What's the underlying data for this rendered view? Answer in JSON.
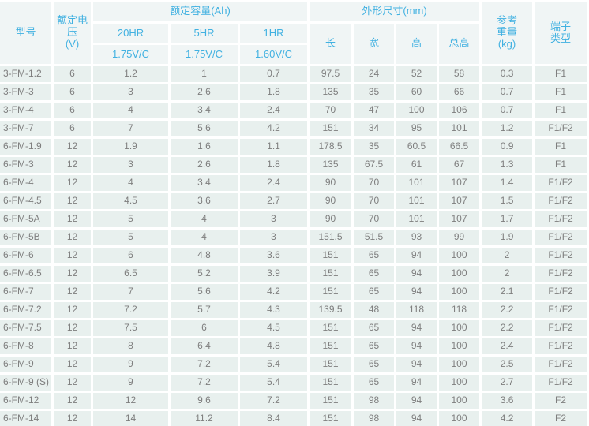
{
  "table": {
    "header": {
      "col_model": "型号",
      "col_voltage": "额定电压\n(V)",
      "group_capacity": "额定容量(Ah)",
      "capacity_cols": [
        {
          "rate": "20HR",
          "cutoff": "1.75V/C"
        },
        {
          "rate": "5HR",
          "cutoff": "1.75V/C"
        },
        {
          "rate": "1HR",
          "cutoff": "1.60V/C"
        }
      ],
      "group_dimensions": "外形尺寸(mm)",
      "dimension_cols": {
        "length": "长",
        "width": "宽",
        "height": "高",
        "total_height": "总高"
      },
      "col_weight": "参考\n重量\n(kg)",
      "col_terminal": "端子\n类型"
    },
    "rows": [
      [
        "3-FM-1.2",
        "6",
        "1.2",
        "1",
        "0.7",
        "97.5",
        "24",
        "52",
        "58",
        "0.3",
        "F1"
      ],
      [
        "3-FM-3",
        "6",
        "3",
        "2.6",
        "1.8",
        "135",
        "35",
        "60",
        "66",
        "0.7",
        "F1"
      ],
      [
        "3-FM-4",
        "6",
        "4",
        "3.4",
        "2.4",
        "70",
        "47",
        "100",
        "106",
        "0.7",
        "F1"
      ],
      [
        "3-FM-7",
        "6",
        "7",
        "5.6",
        "4.2",
        "151",
        "34",
        "95",
        "101",
        "1.2",
        "F1/F2"
      ],
      [
        "6-FM-1.9",
        "12",
        "1.9",
        "1.6",
        "1.1",
        "178.5",
        "35",
        "60.5",
        "66.5",
        "0.9",
        "F1"
      ],
      [
        "6-FM-3",
        "12",
        "3",
        "2.6",
        "1.8",
        "135",
        "67.5",
        "61",
        "67",
        "1.3",
        "F1"
      ],
      [
        "6-FM-4",
        "12",
        "4",
        "3.4",
        "2.4",
        "90",
        "70",
        "101",
        "107",
        "1.4",
        "F1/F2"
      ],
      [
        "6-FM-4.5",
        "12",
        "4.5",
        "3.6",
        "2.7",
        "90",
        "70",
        "101",
        "107",
        "1.5",
        "F1/F2"
      ],
      [
        "6-FM-5A",
        "12",
        "5",
        "4",
        "3",
        "90",
        "70",
        "101",
        "107",
        "1.7",
        "F1/F2"
      ],
      [
        "6-FM-5B",
        "12",
        "5",
        "4",
        "3",
        "151.5",
        "51.5",
        "93",
        "99",
        "1.9",
        "F1/F2"
      ],
      [
        "6-FM-6",
        "12",
        "6",
        "4.8",
        "3.6",
        "151",
        "65",
        "94",
        "100",
        "2",
        "F1/F2"
      ],
      [
        "6-FM-6.5",
        "12",
        "6.5",
        "5.2",
        "3.9",
        "151",
        "65",
        "94",
        "100",
        "2",
        "F1/F2"
      ],
      [
        "6-FM-7",
        "12",
        "7",
        "5.6",
        "4.2",
        "151",
        "65",
        "94",
        "100",
        "2.1",
        "F1/F2"
      ],
      [
        "6-FM-7.2",
        "12",
        "7.2",
        "5.7",
        "4.3",
        "139.5",
        "48",
        "118",
        "118",
        "2.2",
        "F1/F2"
      ],
      [
        "6-FM-7.5",
        "12",
        "7.5",
        "6",
        "4.5",
        "151",
        "65",
        "94",
        "100",
        "2.2",
        "F1/F2"
      ],
      [
        "6-FM-8",
        "12",
        "8",
        "6.4",
        "4.8",
        "151",
        "65",
        "94",
        "100",
        "2.4",
        "F1/F2"
      ],
      [
        "6-FM-9",
        "12",
        "9",
        "7.2",
        "5.4",
        "151",
        "65",
        "94",
        "100",
        "2.5",
        "F1/F2"
      ],
      [
        "6-FM-9 (S)",
        "12",
        "9",
        "7.2",
        "5.4",
        "151",
        "65",
        "94",
        "100",
        "2.7",
        "F1/F2"
      ],
      [
        "6-FM-12",
        "12",
        "12",
        "9.6",
        "7.2",
        "151",
        "98",
        "94",
        "100",
        "3.6",
        "F2"
      ],
      [
        "6-FM-14",
        "12",
        "14",
        "11.2",
        "8.4",
        "151",
        "98",
        "94",
        "100",
        "4.2",
        "F2"
      ]
    ],
    "column_names": [
      "model",
      "voltage",
      "cap-20hr",
      "cap-5hr",
      "cap-1hr",
      "dim-length",
      "dim-width",
      "dim-height",
      "dim-total-height",
      "weight",
      "terminal"
    ]
  },
  "colors": {
    "header_bg": "#f0f5f5",
    "header_text": "#41b1e1",
    "cell_bg": "#e8f0ee",
    "cell_text": "#7e7e7e",
    "grid_gap": "#ffffff"
  }
}
